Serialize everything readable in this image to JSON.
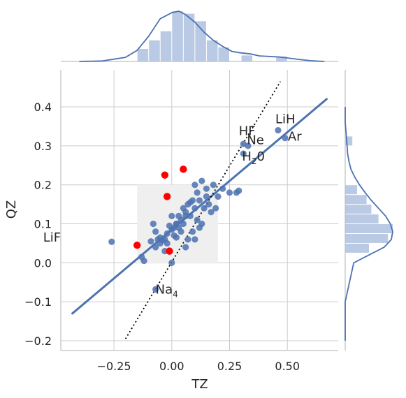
{
  "chart_data": {
    "type": "scatter",
    "xlabel": "TZ",
    "ylabel": "QZ",
    "xlim": [
      -0.48,
      0.72
    ],
    "ylim": [
      -0.225,
      0.495
    ],
    "x_ticks": [
      -0.25,
      0.0,
      0.25,
      0.5
    ],
    "x_tick_labels": [
      "−0.25",
      "0.00",
      "0.25",
      "0.50"
    ],
    "y_ticks": [
      -0.2,
      -0.1,
      0.0,
      0.1,
      0.2,
      0.3,
      0.4
    ],
    "y_tick_labels": [
      "−0.2",
      "−0.1",
      "0.0",
      "0.1",
      "0.2",
      "0.3",
      "0.4"
    ],
    "grid": true,
    "colors": {
      "points": "#4c72b0",
      "highlight": "#ff0000",
      "regression": "#4c72b0",
      "marginal_bars": "#aec1df",
      "box": "#efefef",
      "parity": "#000000"
    },
    "highlight_box": {
      "x": [
        -0.15,
        0.2
      ],
      "y": [
        -0.002,
        0.2
      ]
    },
    "regression_line": {
      "x": [
        -0.43,
        0.67
      ],
      "y": [
        -0.13,
        0.42
      ]
    },
    "parity_line": {
      "x": [
        -0.2,
        0.47
      ],
      "y": [
        -0.195,
        0.465
      ]
    },
    "points": [
      {
        "x": -0.26,
        "y": 0.054
      },
      {
        "x": -0.13,
        "y": 0.015
      },
      {
        "x": -0.12,
        "y": 0.005
      },
      {
        "x": -0.09,
        "y": 0.055
      },
      {
        "x": -0.08,
        "y": 0.1
      },
      {
        "x": -0.07,
        "y": 0.08
      },
      {
        "x": -0.06,
        "y": 0.06
      },
      {
        "x": -0.05,
        "y": 0.05
      },
      {
        "x": -0.05,
        "y": 0.065
      },
      {
        "x": -0.04,
        "y": 0.058
      },
      {
        "x": -0.03,
        "y": 0.06
      },
      {
        "x": -0.02,
        "y": 0.05
      },
      {
        "x": -0.01,
        "y": 0.095
      },
      {
        "x": -0.02,
        "y": 0.075
      },
      {
        "x": 0.0,
        "y": 0.12
      },
      {
        "x": 0.0,
        "y": 0.085
      },
      {
        "x": 0.01,
        "y": 0.09
      },
      {
        "x": 0.02,
        "y": 0.1
      },
      {
        "x": 0.01,
        "y": 0.07
      },
      {
        "x": 0.02,
        "y": 0.065
      },
      {
        "x": 0.03,
        "y": 0.09
      },
      {
        "x": 0.04,
        "y": 0.11
      },
      {
        "x": 0.05,
        "y": 0.14
      },
      {
        "x": 0.06,
        "y": 0.13
      },
      {
        "x": 0.05,
        "y": 0.1
      },
      {
        "x": 0.07,
        "y": 0.15
      },
      {
        "x": 0.06,
        "y": 0.12
      },
      {
        "x": 0.08,
        "y": 0.155
      },
      {
        "x": 0.08,
        "y": 0.12
      },
      {
        "x": 0.09,
        "y": 0.16
      },
      {
        "x": 0.1,
        "y": 0.14
      },
      {
        "x": 0.11,
        "y": 0.18
      },
      {
        "x": 0.1,
        "y": 0.2
      },
      {
        "x": 0.12,
        "y": 0.16
      },
      {
        "x": 0.13,
        "y": 0.21
      },
      {
        "x": 0.15,
        "y": 0.19
      },
      {
        "x": 0.14,
        "y": 0.14
      },
      {
        "x": 0.16,
        "y": 0.15
      },
      {
        "x": 0.17,
        "y": 0.13
      },
      {
        "x": 0.18,
        "y": 0.2
      },
      {
        "x": 0.2,
        "y": 0.17
      },
      {
        "x": 0.22,
        "y": 0.19
      },
      {
        "x": 0.25,
        "y": 0.18
      },
      {
        "x": 0.28,
        "y": 0.18
      },
      {
        "x": 0.29,
        "y": 0.185
      },
      {
        "x": 0.12,
        "y": 0.09
      },
      {
        "x": 0.1,
        "y": 0.06
      },
      {
        "x": 0.06,
        "y": 0.04
      },
      {
        "x": 0.07,
        "y": 0.06
      },
      {
        "x": 0.11,
        "y": 0.11
      },
      {
        "x": 0.13,
        "y": 0.1
      },
      {
        "x": 0.03,
        "y": 0.12
      },
      {
        "x": -0.07,
        "y": 0.04
      },
      {
        "x": -0.03,
        "y": 0.03
      },
      {
        "x": 0.0,
        "y": 0.0
      },
      {
        "x": 0.02,
        "y": 0.1
      },
      {
        "x": 0.04,
        "y": 0.08
      },
      {
        "x": 0.09,
        "y": 0.08
      },
      {
        "x": 0.15,
        "y": 0.17
      },
      {
        "x": 0.19,
        "y": 0.14
      },
      {
        "x": -0.07,
        "y": -0.068
      },
      {
        "x": 0.31,
        "y": 0.28
      },
      {
        "x": 0.31,
        "y": 0.305
      },
      {
        "x": 0.33,
        "y": 0.3
      },
      {
        "x": 0.46,
        "y": 0.34
      },
      {
        "x": 0.49,
        "y": 0.32
      }
    ],
    "highlighted_points": [
      {
        "x": -0.15,
        "y": 0.045
      },
      {
        "x": -0.03,
        "y": 0.225
      },
      {
        "x": 0.05,
        "y": 0.24
      },
      {
        "x": -0.02,
        "y": 0.17
      },
      {
        "x": -0.01,
        "y": 0.03
      }
    ],
    "annotations": [
      {
        "text": "LiF",
        "x": -0.26,
        "y": 0.054,
        "sub": ""
      },
      {
        "text": "Na",
        "x": -0.07,
        "y": -0.068,
        "sub": "4"
      },
      {
        "text": "HF",
        "x": 0.29,
        "y": 0.31,
        "sub": ""
      },
      {
        "text": "Ne",
        "x": 0.325,
        "y": 0.295,
        "sub": ""
      },
      {
        "text": "H",
        "x": 0.31,
        "y": 0.28,
        "sub": "2",
        "after": "0"
      },
      {
        "text": "LiH",
        "x": 0.46,
        "y": 0.34,
        "sub": ""
      },
      {
        "text": "Ar",
        "x": 0.49,
        "y": 0.32,
        "sub": ""
      }
    ],
    "marginal_x_histogram": {
      "bin_edges": [
        -0.15,
        -0.1,
        -0.05,
        0.0,
        0.05,
        0.1,
        0.15,
        0.2,
        0.25,
        0.3,
        0.35,
        0.4,
        0.45,
        0.5
      ],
      "values": [
        0.25,
        0.42,
        0.6,
        1.0,
        0.95,
        0.8,
        0.42,
        0.28,
        0.0,
        0.12,
        0.0,
        0.0,
        0.1
      ],
      "kde_x": [
        -0.4,
        -0.3,
        -0.2,
        -0.15,
        -0.1,
        -0.05,
        0.0,
        0.03,
        0.06,
        0.1,
        0.14,
        0.18,
        0.22,
        0.26,
        0.3,
        0.34,
        0.38,
        0.42,
        0.46,
        0.5,
        0.55,
        0.6,
        0.66
      ],
      "kde_y": [
        0.0,
        0.01,
        0.08,
        0.22,
        0.5,
        0.85,
        0.97,
        1.0,
        0.93,
        0.78,
        0.58,
        0.42,
        0.3,
        0.2,
        0.17,
        0.15,
        0.11,
        0.1,
        0.09,
        0.07,
        0.04,
        0.015,
        0.0
      ]
    },
    "marginal_y_histogram": {
      "bin_edges": [
        0.0,
        0.025,
        0.05,
        0.075,
        0.1,
        0.125,
        0.15,
        0.175,
        0.2,
        0.225,
        0.25,
        0.275,
        0.3,
        0.325
      ],
      "values": [
        0.0,
        0.5,
        0.9,
        1.0,
        0.7,
        0.55,
        0.45,
        0.25,
        0.0,
        0.0,
        0.0,
        0.0,
        0.15,
        0.0
      ],
      "kde_y": [
        -0.2,
        -0.1,
        0.0,
        0.02,
        0.04,
        0.06,
        0.08,
        0.1,
        0.12,
        0.14,
        0.16,
        0.18,
        0.2,
        0.22,
        0.24,
        0.26,
        0.28,
        0.3,
        0.33,
        0.36,
        0.4
      ],
      "kde_x": [
        0.0,
        0.0,
        0.18,
        0.5,
        0.82,
        0.97,
        1.0,
        0.95,
        0.85,
        0.7,
        0.55,
        0.42,
        0.3,
        0.2,
        0.12,
        0.08,
        0.05,
        0.04,
        0.02,
        0.0,
        0.0
      ]
    }
  }
}
